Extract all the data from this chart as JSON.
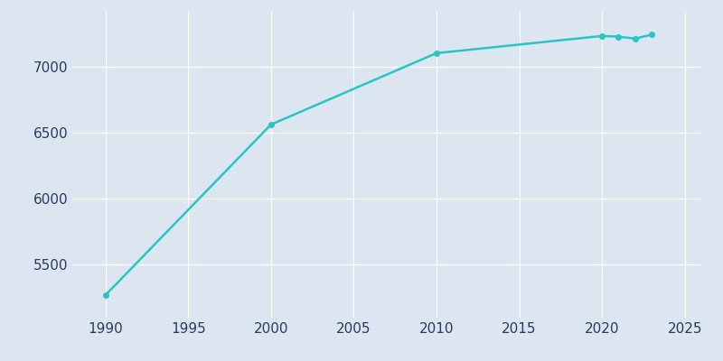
{
  "years": [
    1990,
    2000,
    2010,
    2020,
    2021,
    2022,
    2023
  ],
  "population": [
    5270,
    6560,
    7100,
    7230,
    7225,
    7210,
    7240
  ],
  "line_color": "#2ac4c4",
  "marker_style": "o",
  "marker_size": 4,
  "bg_color": "#dce6f0",
  "plot_bg_color": "#dce6f0",
  "grid_color": "#ffffff",
  "xlim": [
    1988,
    2026
  ],
  "ylim": [
    5100,
    7420
  ],
  "xticks": [
    1990,
    1995,
    2000,
    2005,
    2010,
    2015,
    2020,
    2025
  ],
  "yticks": [
    5500,
    6000,
    6500,
    7000
  ],
  "tick_color": "#2b3a5c",
  "spine_color": "#dce6f0"
}
